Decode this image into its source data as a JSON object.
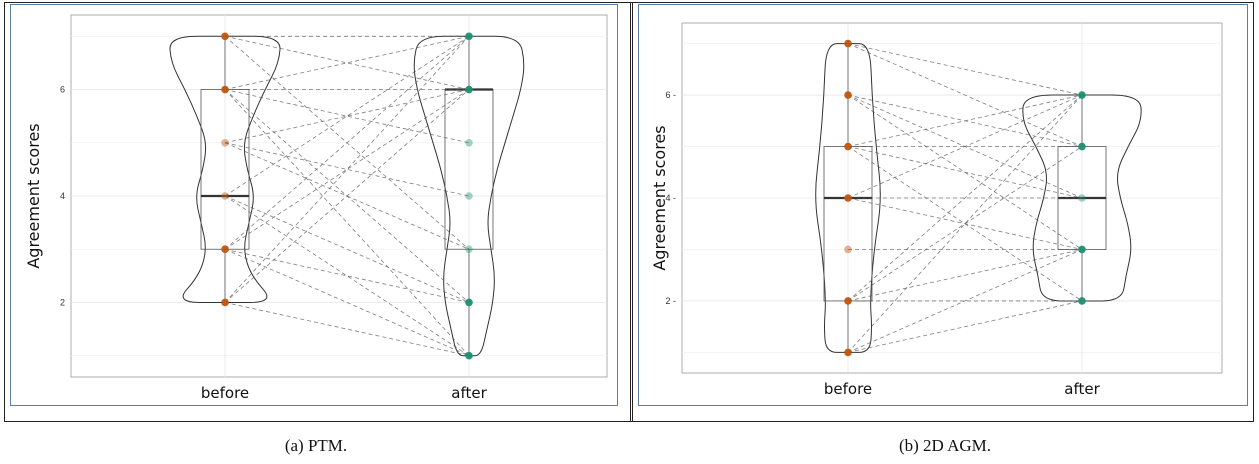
{
  "chart_data": [
    {
      "type": "violin",
      "ylabel": "Agreement scores",
      "categories": [
        "before",
        "after"
      ],
      "yticks": [
        2,
        4,
        6
      ],
      "ylim": [
        0.6,
        7.4
      ],
      "grid": true,
      "caption": "(a) PTM.",
      "colors": {
        "before": "#c0560f",
        "after": "#1b9070"
      },
      "box": [
        {
          "category": "before",
          "q1": 3,
          "median": 4,
          "q3": 6,
          "min": 2,
          "max": 7
        },
        {
          "category": "after",
          "q1": 3,
          "median": 6,
          "q3": 6,
          "min": 1,
          "max": 7
        }
      ],
      "before_points": [
        7,
        6,
        5,
        4,
        3,
        2
      ],
      "after_points": [
        7,
        6,
        5,
        4,
        3,
        2,
        1
      ],
      "pairs": [
        [
          7,
          7
        ],
        [
          7,
          6
        ],
        [
          7,
          3
        ],
        [
          6,
          7
        ],
        [
          6,
          5
        ],
        [
          6,
          2
        ],
        [
          6,
          1
        ],
        [
          5,
          6
        ],
        [
          5,
          4
        ],
        [
          4,
          7
        ],
        [
          4,
          2
        ],
        [
          4,
          1
        ],
        [
          3,
          7
        ],
        [
          3,
          6
        ],
        [
          3,
          2
        ],
        [
          3,
          1
        ],
        [
          2,
          7
        ],
        [
          2,
          6
        ],
        [
          2,
          1
        ],
        [
          6,
          6
        ],
        [
          5,
          3
        ]
      ]
    },
    {
      "type": "violin",
      "ylabel": "Agreement scores",
      "categories": [
        "before",
        "after"
      ],
      "yticks": [
        2,
        4,
        6
      ],
      "ylim": [
        0.6,
        7.4
      ],
      "grid": true,
      "caption": "(b) 2D AGM.",
      "colors": {
        "before": "#c0560f",
        "after": "#1b9070"
      },
      "box": [
        {
          "category": "before",
          "q1": 2,
          "median": 4,
          "q3": 5,
          "min": 1,
          "max": 7
        },
        {
          "category": "after",
          "q1": 3,
          "median": 4,
          "q3": 5,
          "min": 2,
          "max": 6
        }
      ],
      "before_points": [
        7,
        6,
        5,
        4,
        3,
        2,
        1
      ],
      "after_points": [
        6,
        5,
        4,
        3,
        2
      ],
      "pairs": [
        [
          7,
          6
        ],
        [
          7,
          5
        ],
        [
          6,
          4
        ],
        [
          6,
          3
        ],
        [
          5,
          6
        ],
        [
          5,
          5
        ],
        [
          5,
          2
        ],
        [
          4,
          6
        ],
        [
          4,
          4
        ],
        [
          4,
          3
        ],
        [
          3,
          3
        ],
        [
          2,
          6
        ],
        [
          2,
          5
        ],
        [
          2,
          2
        ],
        [
          1,
          6
        ],
        [
          1,
          3
        ],
        [
          1,
          2
        ],
        [
          5,
          4
        ],
        [
          6,
          5
        ],
        [
          2,
          3
        ]
      ]
    }
  ]
}
